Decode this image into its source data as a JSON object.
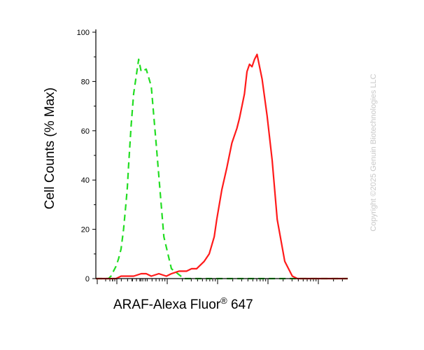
{
  "chart_data": {
    "type": "line",
    "title": "",
    "xlabel": "ARAF-Alexa Fluor",
    "xlabel_superscript": "®",
    "xlabel_suffix": " 647",
    "ylabel": "Cell Counts (% Max)",
    "ylim": [
      0,
      100
    ],
    "xlim": [
      0,
      100
    ],
    "yticks": [
      "0",
      "20",
      "40",
      "60",
      "80",
      "100"
    ],
    "x_scale": "log",
    "grid": false,
    "legend": "none",
    "copyright": "Copyright ©2025 Genuin Biotechnologies LLC",
    "series": [
      {
        "style": "dashed",
        "color": "#22dd22",
        "x": [
          0,
          2,
          4,
          5,
          6,
          7,
          8,
          9,
          10,
          11,
          12,
          12.5,
          13,
          14,
          15,
          16,
          17,
          18,
          20,
          22,
          24,
          27,
          30,
          35,
          40,
          45,
          50,
          60,
          75,
          100
        ],
        "y": [
          0,
          0,
          0,
          0,
          1,
          3,
          5,
          8,
          12,
          20,
          31,
          37,
          46,
          62,
          75,
          82,
          89,
          84,
          85,
          78,
          54,
          17,
          4,
          0,
          0,
          0,
          0,
          0,
          0,
          0
        ]
      },
      {
        "style": "solid",
        "color": "#ff1a1a",
        "x": [
          0,
          5,
          8,
          10,
          12,
          15,
          18,
          20,
          22,
          25,
          28,
          30,
          33,
          36,
          38,
          40,
          42,
          43,
          45,
          47,
          48,
          49,
          50,
          52,
          54,
          56,
          57,
          58,
          59,
          60,
          61,
          62,
          63,
          64,
          65,
          66,
          68,
          70,
          72,
          75,
          78,
          80,
          85,
          90,
          100
        ],
        "y": [
          0,
          0,
          0,
          1,
          1,
          1,
          2,
          2,
          1,
          2,
          1,
          2,
          3,
          3,
          4,
          4,
          6,
          7,
          10,
          17,
          24,
          30,
          36,
          45,
          55,
          61,
          65,
          70,
          75,
          84,
          87,
          86,
          89,
          91,
          86,
          81,
          66,
          48,
          24,
          7,
          1,
          0,
          0,
          0,
          0
        ]
      }
    ]
  }
}
